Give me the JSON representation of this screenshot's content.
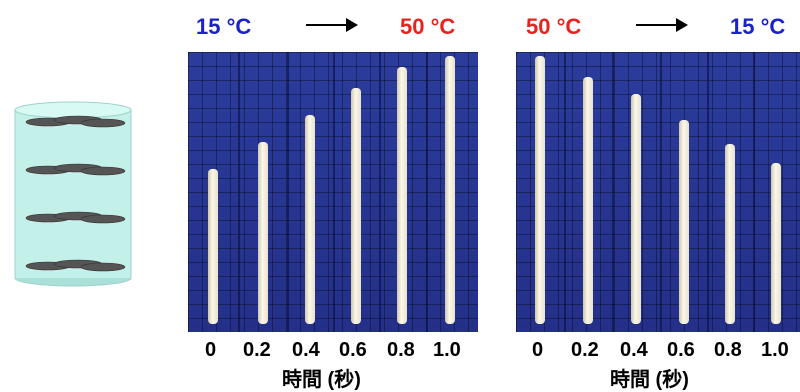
{
  "left_panel": {
    "start_temp": "15 °C",
    "end_temp": "50 °C",
    "ticks": [
      "0",
      "0.2",
      "0.4",
      "0.6",
      "0.8",
      "1.0"
    ],
    "axis_label": "時間 (秒)",
    "fiber_fill_fraction": [
      0.58,
      0.68,
      0.78,
      0.88,
      0.96,
      1.0
    ]
  },
  "right_panel": {
    "start_temp": "50 °C",
    "end_temp": "15 °C",
    "ticks": [
      "0",
      "0.2",
      "0.4",
      "0.6",
      "0.8",
      "1.0"
    ],
    "axis_label": "時間 (秒)",
    "fiber_fill_fraction": [
      1.0,
      0.92,
      0.86,
      0.76,
      0.67,
      0.6
    ]
  },
  "colors": {
    "cold": "#1a22c8",
    "hot": "#e8231e",
    "photo_background": "#26328a",
    "cylinder": "#bfeee6"
  }
}
